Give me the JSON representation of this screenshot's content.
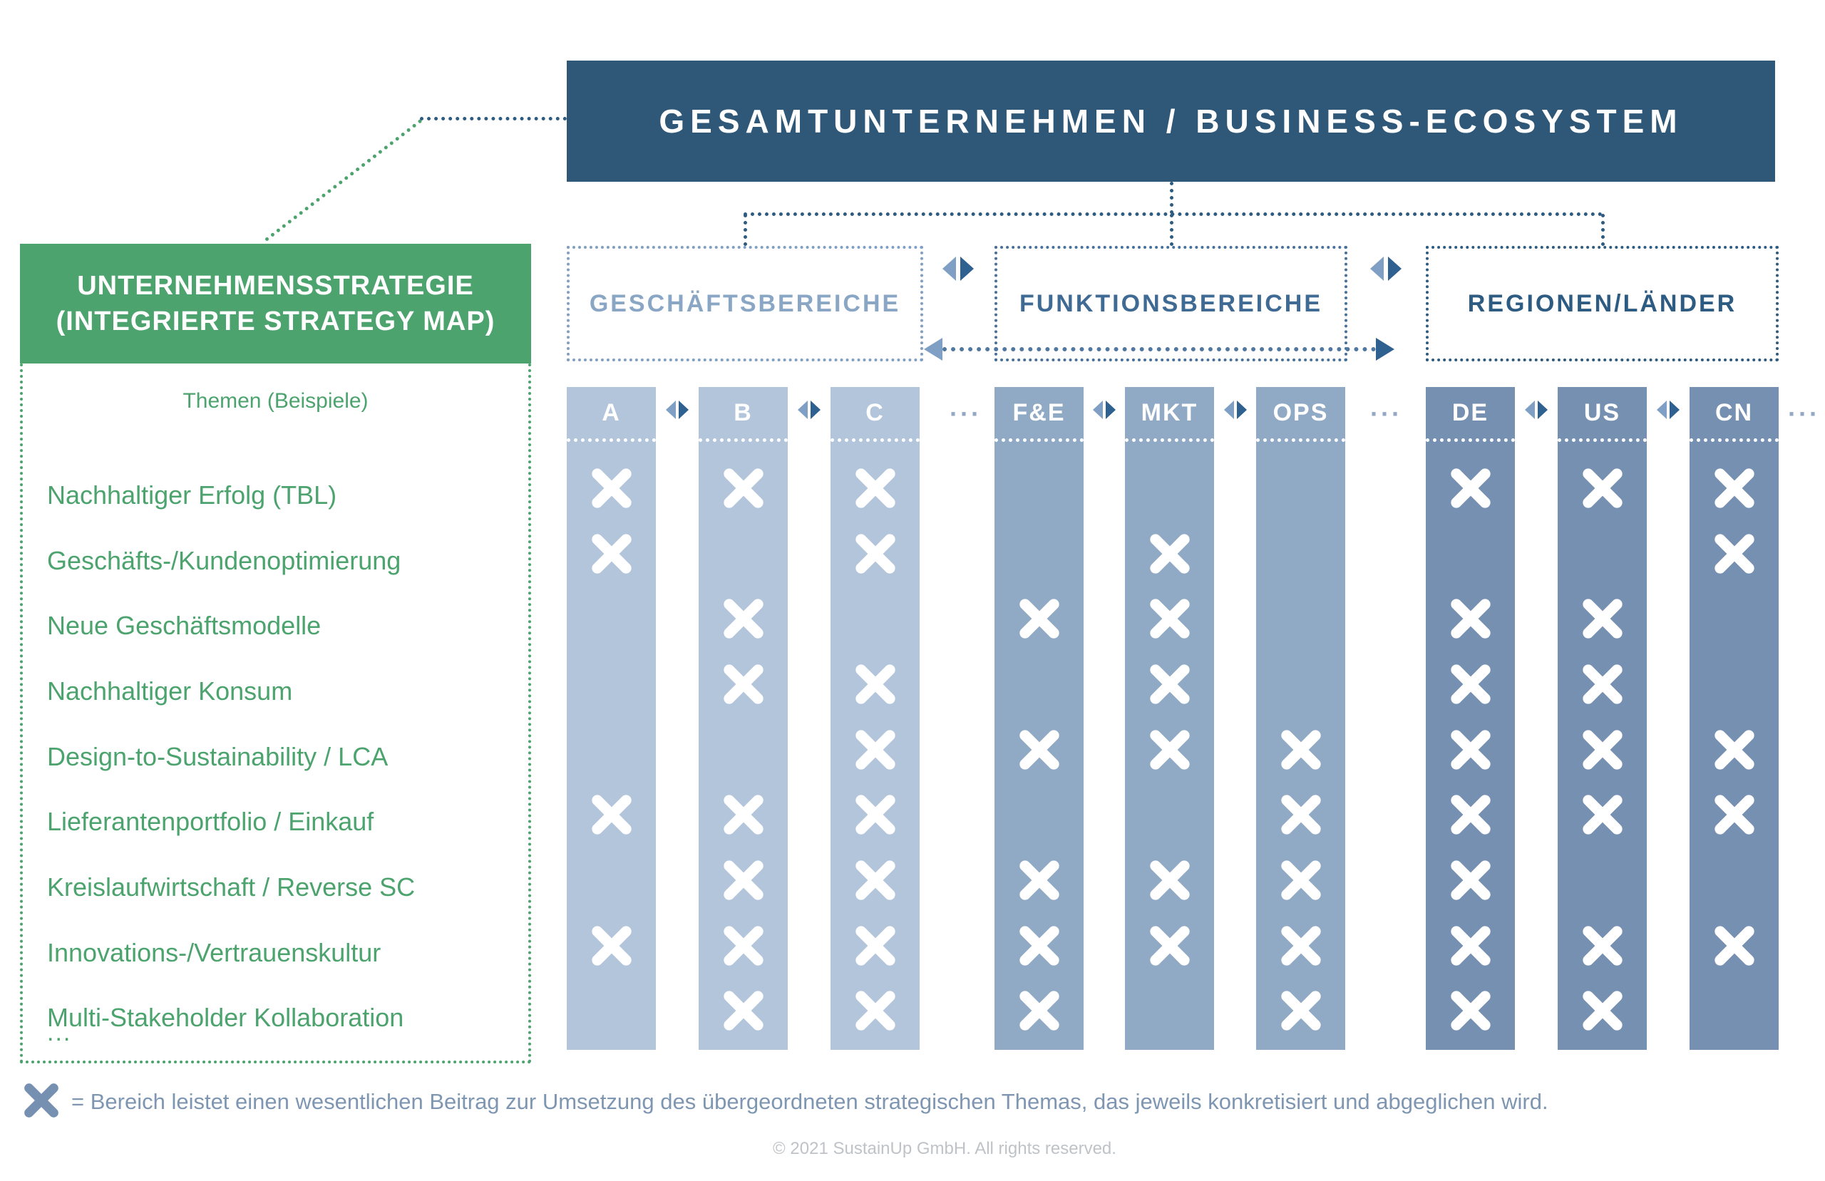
{
  "header": {
    "title": "GESAMTUNTERNEHMEN / BUSINESS-ECOSYSTEM"
  },
  "strategy_box": {
    "line1": "UNTERNEHMENSSTRATEGIE",
    "line2": "(INTEGRIERTE STRATEGY MAP)",
    "subtitle": "Themen (Beispiele)"
  },
  "themes": [
    "Nachhaltiger Erfolg (TBL)",
    "Geschäfts-/Kundenoptimierung",
    "Neue Geschäftsmodelle",
    "Nachhaltiger Konsum",
    "Design-to-Sustainability / LCA",
    "Lieferantenportfolio / Einkauf",
    "Kreislaufwirtschaft / Reverse SC",
    "Innovations-/Vertrauenskultur",
    "Multi-Stakeholder Kollaboration"
  ],
  "themes_more": "...",
  "groups": [
    {
      "label": "GESCHÄFTSBEREICHE",
      "columns": [
        "A",
        "B",
        "C"
      ]
    },
    {
      "label": "FUNKTIONSBEREICHE",
      "columns": [
        "F&E",
        "MKT",
        "OPS"
      ]
    },
    {
      "label": "REGIONEN/LÄNDER",
      "columns": [
        "DE",
        "US",
        "CN"
      ]
    }
  ],
  "ellipsis": "···",
  "matrix": {
    "columns_order": [
      "A",
      "B",
      "C",
      "F&E",
      "MKT",
      "OPS",
      "DE",
      "US",
      "CN"
    ],
    "rows": [
      [
        1,
        1,
        1,
        0,
        0,
        0,
        1,
        1,
        1
      ],
      [
        1,
        0,
        1,
        0,
        1,
        0,
        0,
        0,
        1
      ],
      [
        0,
        1,
        0,
        1,
        1,
        0,
        1,
        1,
        0
      ],
      [
        0,
        1,
        1,
        0,
        1,
        0,
        1,
        1,
        0
      ],
      [
        0,
        0,
        1,
        1,
        1,
        1,
        1,
        1,
        1
      ],
      [
        1,
        1,
        1,
        0,
        0,
        1,
        1,
        1,
        1
      ],
      [
        0,
        1,
        1,
        1,
        1,
        1,
        1,
        0,
        0
      ],
      [
        1,
        1,
        1,
        1,
        1,
        1,
        1,
        1,
        1
      ],
      [
        0,
        1,
        1,
        1,
        0,
        1,
        1,
        1,
        0
      ]
    ]
  },
  "legend": {
    "text": "= Bereich leistet einen wesentlichen Beitrag zur Umsetzung des übergeordneten strategischen Themas, das jeweils konkretisiert und abgeglichen wird."
  },
  "footer": {
    "copyright": "© 2021 SustainUp GmbH. All rights reserved."
  },
  "colors": {
    "header_bg": "#2F5777",
    "green": "#4CA36E",
    "col_light": "#B2C5DB",
    "col_mid": "#90AAC5",
    "col_dark": "#7690B1",
    "group_label_light": "#8AA6C5",
    "group_label_mid": "#3E6A94",
    "group_label_dark": "#2D5B82",
    "group_border_light": "#7FA0C4",
    "group_border_mid": "#46719C",
    "group_border_dark": "#2E5B80",
    "line_blue": "#2E5B80",
    "line_mid": "#4F779F",
    "arrow_light": "#7FA0C4",
    "arrow_dark": "#2E6090",
    "ellipsis": "#93A9C3",
    "legend_text": "#7E96B1",
    "footer_text": "#BFC3C7"
  }
}
